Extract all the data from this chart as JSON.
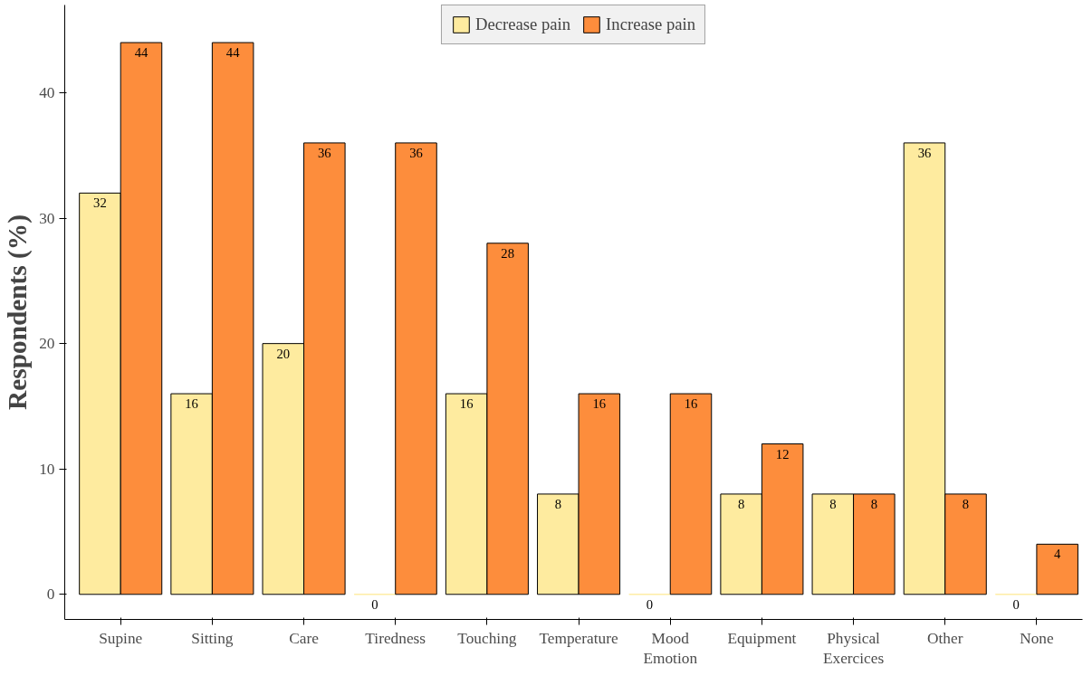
{
  "chart_data": {
    "type": "bar",
    "ylabel": "Respondents (%)",
    "categories": [
      "Supine",
      "Sitting",
      "Care",
      "Tiredness",
      "Touching",
      "Temperature",
      "Mood\nEmotion",
      "Equipment",
      "Physical\nExercices",
      "Other",
      "None"
    ],
    "series": [
      {
        "name": "Decrease pain",
        "color": "#feeb9f",
        "values": [
          32,
          16,
          20,
          0,
          16,
          8,
          0,
          8,
          8,
          36,
          0
        ]
      },
      {
        "name": "Increase pain",
        "color": "#fd8d3c",
        "values": [
          44,
          44,
          36,
          36,
          28,
          16,
          16,
          12,
          8,
          8,
          4
        ]
      }
    ],
    "ylim": [
      -2,
      47
    ],
    "yticks": [
      0,
      10,
      20,
      30,
      40
    ],
    "grid": false,
    "legend": "top",
    "data_labels": true
  }
}
